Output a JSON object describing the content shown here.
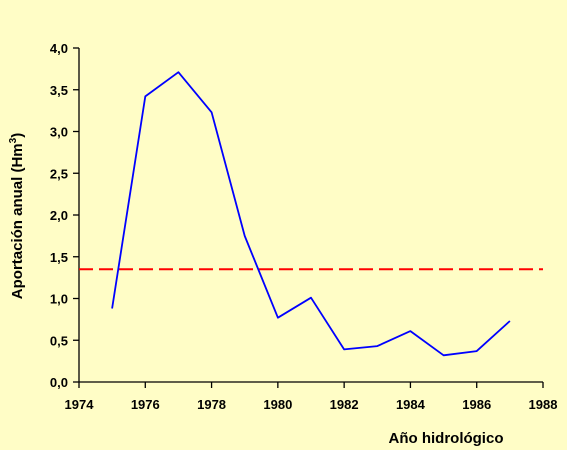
{
  "chart_data": {
    "type": "line",
    "title": "",
    "xlabel": "Año hidrológico",
    "ylabel_main": "Aportación anual (Hm",
    "ylabel_sup": "3",
    "ylabel_close": ")",
    "xlim": [
      1974,
      1988
    ],
    "ylim": [
      0,
      4
    ],
    "x_ticks": [
      1974,
      1976,
      1978,
      1980,
      1982,
      1984,
      1986,
      1988
    ],
    "x_tick_labels": [
      "1974",
      "1976",
      "1978",
      "1980",
      "1982",
      "1984",
      "1986",
      "1988"
    ],
    "y_ticks": [
      0,
      0.5,
      1,
      1.5,
      2,
      2.5,
      3,
      3.5,
      4
    ],
    "y_tick_labels": [
      "0,0",
      "0,5",
      "1,0",
      "1,5",
      "2,0",
      "2,5",
      "3,0",
      "3,5",
      "4,0"
    ],
    "grid": false,
    "series": [
      {
        "color": "#0000FF",
        "x": [
          1975,
          1976,
          1977,
          1978,
          1979,
          1980,
          1981,
          1982,
          1983,
          1984,
          1985,
          1986,
          1987
        ],
        "y": [
          0.88,
          3.42,
          3.71,
          3.23,
          1.75,
          0.77,
          1.01,
          0.39,
          0.43,
          0.61,
          0.32,
          0.37,
          0.73
        ]
      }
    ],
    "reference_line": {
      "y": 1.35,
      "color": "#FF0000",
      "style": "dashed"
    }
  }
}
